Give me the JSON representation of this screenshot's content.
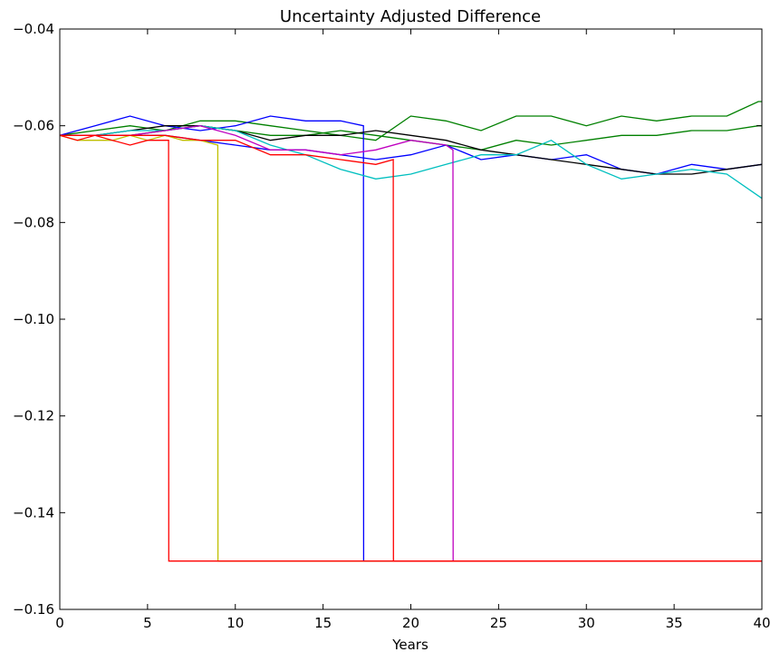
{
  "chart_data": {
    "type": "line",
    "title": "Uncertainty Adjusted Difference",
    "xlabel": "Years",
    "ylabel": "",
    "xlim": [
      0,
      40
    ],
    "ylim": [
      -0.16,
      -0.04
    ],
    "xticks": [
      "0",
      "5",
      "10",
      "15",
      "20",
      "25",
      "30",
      "35",
      "40"
    ],
    "yticks": [
      "−0.16",
      "−0.14",
      "−0.12",
      "−0.10",
      "−0.08",
      "−0.06",
      "−0.04"
    ],
    "grid": false,
    "legend": "none",
    "series": [
      {
        "color": "#008000",
        "x": [
          0,
          2,
          4,
          6,
          8,
          10,
          12,
          14,
          16,
          18,
          20,
          22,
          24,
          26,
          28,
          30,
          32,
          34,
          36,
          38,
          39.8,
          40
        ],
        "y": [
          -0.062,
          -0.061,
          -0.06,
          -0.061,
          -0.059,
          -0.059,
          -0.06,
          -0.061,
          -0.062,
          -0.063,
          -0.058,
          -0.059,
          -0.061,
          -0.058,
          -0.058,
          -0.06,
          -0.058,
          -0.059,
          -0.058,
          -0.058,
          -0.055,
          -0.055
        ]
      },
      {
        "color": "#008000",
        "x": [
          0,
          2,
          4,
          6,
          8,
          10,
          12,
          14,
          16,
          18,
          20,
          22,
          24,
          26,
          28,
          30,
          32,
          34,
          36,
          38,
          39.8,
          40
        ],
        "y": [
          -0.062,
          -0.062,
          -0.062,
          -0.061,
          -0.06,
          -0.061,
          -0.062,
          -0.062,
          -0.061,
          -0.062,
          -0.063,
          -0.064,
          -0.065,
          -0.063,
          -0.064,
          -0.063,
          -0.062,
          -0.062,
          -0.061,
          -0.061,
          -0.06,
          -0.06
        ]
      },
      {
        "color": "#0000ff",
        "x": [
          0,
          2,
          4,
          6,
          8,
          10,
          12,
          14,
          16,
          17.3,
          17.31,
          40
        ],
        "y": [
          -0.062,
          -0.06,
          -0.058,
          -0.06,
          -0.061,
          -0.06,
          -0.058,
          -0.059,
          -0.059,
          -0.06,
          -0.15,
          -0.15
        ]
      },
      {
        "color": "#0000ff",
        "x": [
          0,
          2,
          4,
          6,
          8,
          10,
          12,
          14,
          16,
          18,
          20,
          22,
          24,
          26,
          28,
          30,
          32,
          34,
          36,
          38,
          40
        ],
        "y": [
          -0.062,
          -0.062,
          -0.062,
          -0.062,
          -0.063,
          -0.064,
          -0.065,
          -0.065,
          -0.066,
          -0.067,
          -0.066,
          -0.064,
          -0.067,
          -0.066,
          -0.067,
          -0.066,
          -0.069,
          -0.07,
          -0.068,
          -0.069,
          -0.068
        ]
      },
      {
        "color": "#000000",
        "x": [
          0,
          2,
          4,
          6,
          8,
          10,
          12,
          14,
          16,
          18,
          20,
          22,
          24,
          26,
          28,
          30,
          32,
          34,
          36,
          38,
          40
        ],
        "y": [
          -0.062,
          -0.062,
          -0.061,
          -0.06,
          -0.06,
          -0.061,
          -0.063,
          -0.062,
          -0.062,
          -0.061,
          -0.062,
          -0.063,
          -0.065,
          -0.066,
          -0.067,
          -0.068,
          -0.069,
          -0.07,
          -0.07,
          -0.069,
          -0.068
        ]
      },
      {
        "color": "#00bfbf",
        "x": [
          0,
          2,
          4,
          6,
          8,
          10,
          12,
          14,
          16,
          18,
          20,
          22,
          24,
          26,
          28,
          30,
          32,
          34,
          36,
          38,
          40
        ],
        "y": [
          -0.062,
          -0.062,
          -0.061,
          -0.061,
          -0.06,
          -0.061,
          -0.064,
          -0.066,
          -0.069,
          -0.071,
          -0.07,
          -0.068,
          -0.066,
          -0.066,
          -0.063,
          -0.068,
          -0.071,
          -0.07,
          -0.069,
          -0.07,
          -0.075
        ]
      },
      {
        "color": "#bf00bf",
        "x": [
          0,
          2,
          4,
          6,
          8,
          10,
          12,
          14,
          16,
          18,
          20,
          22,
          22.4,
          22.41,
          40
        ],
        "y": [
          -0.062,
          -0.062,
          -0.062,
          -0.061,
          -0.06,
          -0.062,
          -0.065,
          -0.065,
          -0.066,
          -0.065,
          -0.063,
          -0.064,
          -0.065,
          -0.15,
          -0.15
        ]
      },
      {
        "color": "#bfbf00",
        "x": [
          0,
          1,
          2,
          3,
          4,
          5,
          6,
          7,
          8,
          9.0,
          9.01,
          40
        ],
        "y": [
          -0.062,
          -0.063,
          -0.063,
          -0.063,
          -0.062,
          -0.063,
          -0.062,
          -0.063,
          -0.063,
          -0.064,
          -0.15,
          -0.15
        ]
      },
      {
        "color": "#ff0000",
        "x": [
          0,
          1,
          2,
          3,
          4,
          5,
          6,
          6.2,
          6.21,
          40
        ],
        "y": [
          -0.062,
          -0.063,
          -0.062,
          -0.063,
          -0.064,
          -0.063,
          -0.063,
          -0.063,
          -0.15,
          -0.15
        ]
      },
      {
        "color": "#ff0000",
        "x": [
          0,
          2,
          4,
          6,
          8,
          10,
          12,
          14,
          16,
          18,
          19.0,
          19.01,
          40
        ],
        "y": [
          -0.062,
          -0.062,
          -0.062,
          -0.062,
          -0.063,
          -0.063,
          -0.066,
          -0.066,
          -0.067,
          -0.068,
          -0.067,
          -0.15,
          -0.15
        ]
      }
    ]
  }
}
